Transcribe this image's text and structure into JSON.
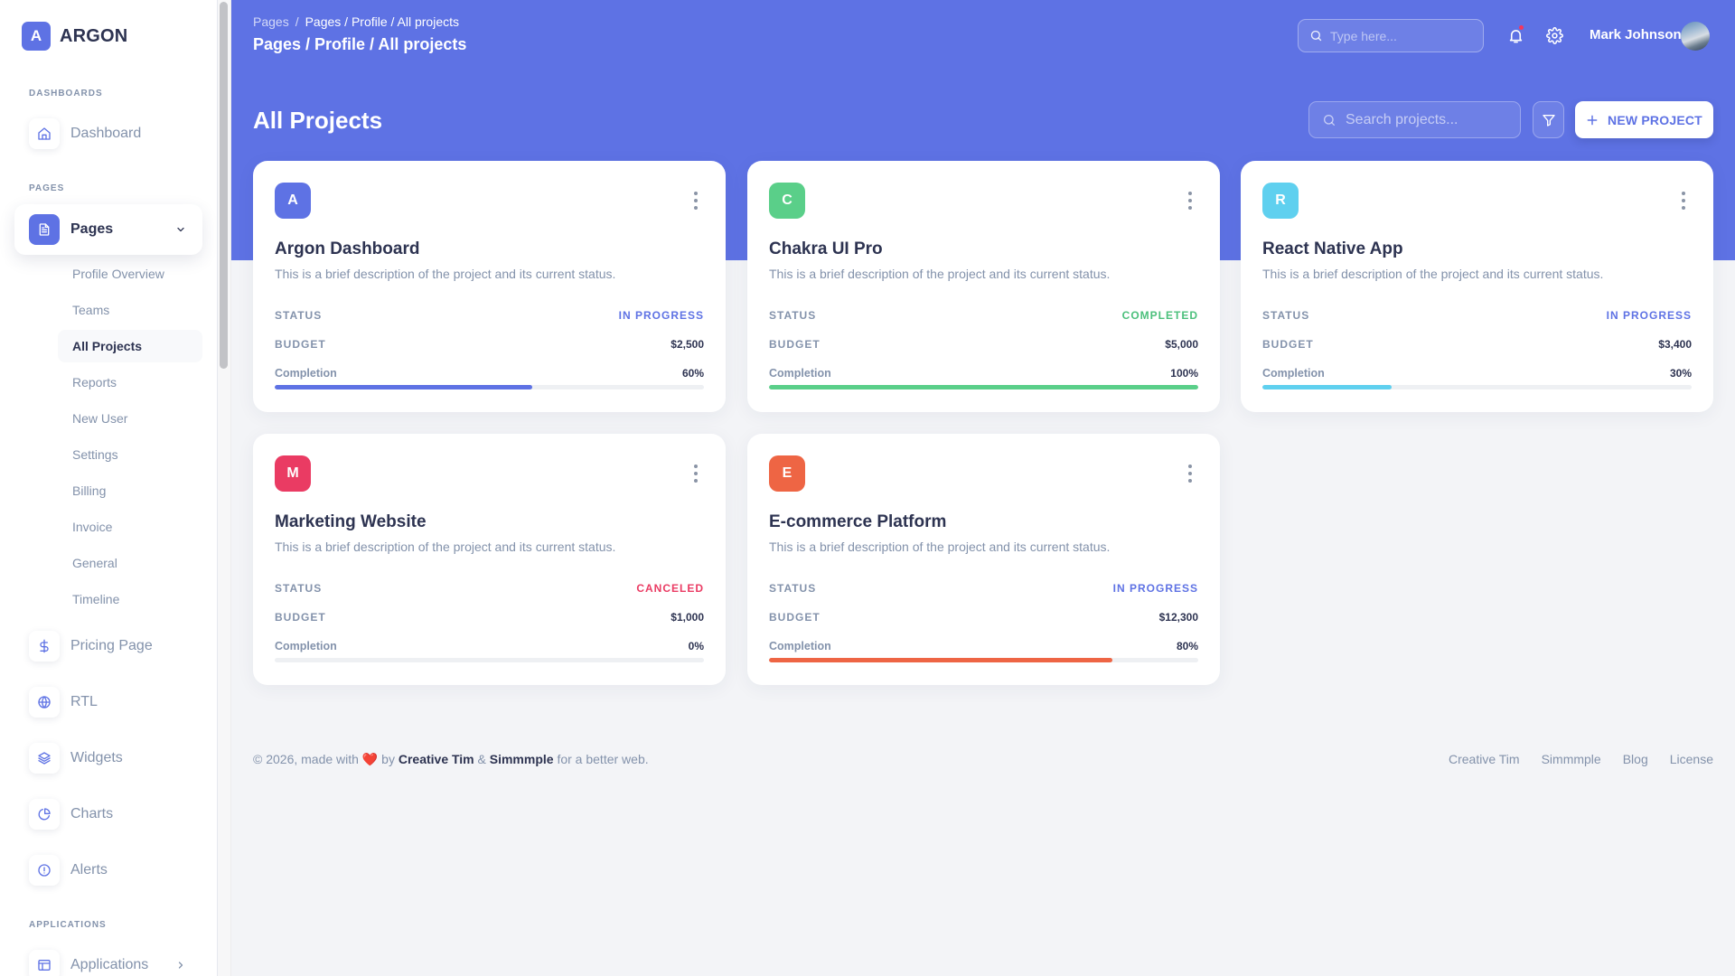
{
  "brand": {
    "logo_letter": "A",
    "name": "ARGON"
  },
  "sidebar": {
    "sections": {
      "dashboards": "DASHBOARDS",
      "pages": "PAGES",
      "applications": "APPLICATIONS"
    },
    "dashboard": {
      "label": "Dashboard",
      "icon": "home-icon"
    },
    "pages": {
      "label": "Pages",
      "icon": "document-icon",
      "expanded": true
    },
    "sub_items": [
      {
        "label": "Profile Overview",
        "active": false
      },
      {
        "label": "Teams",
        "active": false
      },
      {
        "label": "All Projects",
        "active": true
      },
      {
        "label": "Reports",
        "active": false
      },
      {
        "label": "New User",
        "active": false
      },
      {
        "label": "Settings",
        "active": false
      },
      {
        "label": "Billing",
        "active": false
      },
      {
        "label": "Invoice",
        "active": false
      },
      {
        "label": "General",
        "active": false
      },
      {
        "label": "Timeline",
        "active": false
      }
    ],
    "items": [
      {
        "label": "Pricing Page",
        "icon": "dollar-icon"
      },
      {
        "label": "RTL",
        "icon": "globe-icon"
      },
      {
        "label": "Widgets",
        "icon": "layers-icon"
      },
      {
        "label": "Charts",
        "icon": "pie-chart-icon"
      },
      {
        "label": "Alerts",
        "icon": "alert-circle-icon"
      }
    ],
    "applications": {
      "label": "Applications",
      "icon": "layout-icon"
    }
  },
  "header": {
    "breadcrumb_root": "Pages",
    "breadcrumb_separator": "/",
    "breadcrumb_current": "Pages / Profile / All projects",
    "title": "Pages / Profile / All projects",
    "search_placeholder": "Type here...",
    "user_name": "Mark Johnson",
    "notification_dot": true
  },
  "toolbar": {
    "page_title": "All Projects",
    "search_placeholder": "Search projects...",
    "new_project_label": "NEW PROJECT"
  },
  "labels": {
    "status": "STATUS",
    "budget": "BUDGET",
    "completion": "Completion"
  },
  "projects": [
    {
      "letter": "A",
      "color": "#5e72e4",
      "title": "Argon Dashboard",
      "description": "This is a brief description of the project and its current status.",
      "status": "IN PROGRESS",
      "status_color": "#5e72e4",
      "budget": "$2,500",
      "completion": "60%",
      "completion_value": 60,
      "bar_color": "#5e72e4"
    },
    {
      "letter": "C",
      "color": "#5acf89",
      "title": "Chakra UI Pro",
      "description": "This is a brief description of the project and its current status.",
      "status": "COMPLETED",
      "status_color": "#4cc07c",
      "budget": "$5,000",
      "completion": "100%",
      "completion_value": 100,
      "bar_color": "#5acf89"
    },
    {
      "letter": "R",
      "color": "#5fd0ef",
      "title": "React Native App",
      "description": "This is a brief description of the project and its current status.",
      "status": "IN PROGRESS",
      "status_color": "#5e72e4",
      "budget": "$3,400",
      "completion": "30%",
      "completion_value": 30,
      "bar_color": "#5fd0ef"
    },
    {
      "letter": "M",
      "color": "#ea3b63",
      "title": "Marketing Website",
      "description": "This is a brief description of the project and its current status.",
      "status": "CANCELED",
      "status_color": "#ea3b63",
      "budget": "$1,000",
      "completion": "0%",
      "completion_value": 0,
      "bar_color": "#ea3b63"
    },
    {
      "letter": "E",
      "color": "#ee6544",
      "title": "E-commerce Platform",
      "description": "This is a brief description of the project and its current status.",
      "status": "IN PROGRESS",
      "status_color": "#5e72e4",
      "budget": "$12,300",
      "completion": "80%",
      "completion_value": 80,
      "bar_color": "#ee6544"
    }
  ],
  "footer": {
    "prefix": "© 2026, made with",
    "by": "by",
    "author1": "Creative Tim",
    "amp": "&",
    "author2": "Simmmple",
    "suffix": "for a better web.",
    "links": [
      "Creative Tim",
      "Simmmple",
      "Blog",
      "License"
    ]
  },
  "colors": {
    "primary": "#5e72e4",
    "background": "#f3f4f7",
    "text_dark": "#2d3351",
    "text_muted": "#8392ab"
  }
}
